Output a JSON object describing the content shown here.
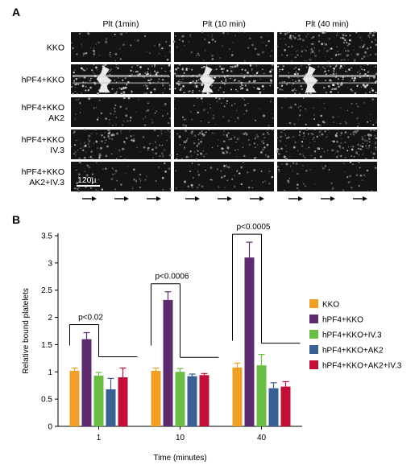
{
  "panel_a": {
    "letter": "A",
    "columns": [
      "Plt (1min)",
      "Plt (10 min)",
      "Plt (40 min)"
    ],
    "rows": [
      {
        "lines": [
          "KKO"
        ],
        "intensity": "low",
        "aggregate": false
      },
      {
        "lines": [
          "hPF4+KKO"
        ],
        "intensity": "high",
        "aggregate": true
      },
      {
        "lines": [
          "hPF4+KKO",
          "AK2"
        ],
        "intensity": "low",
        "aggregate": false
      },
      {
        "lines": [
          "hPF4+KKO",
          "IV.3"
        ],
        "intensity": "medium",
        "aggregate": false
      },
      {
        "lines": [
          "hPF4+KKO",
          "AK2+IV.3"
        ],
        "intensity": "low",
        "aggregate": false
      }
    ],
    "scale_bar_label": "120µ",
    "flow_arrow": "→"
  },
  "panel_b": {
    "letter": "B",
    "chart_data": {
      "type": "bar",
      "ylabel": "Relative bound platelets",
      "xlabel": "Time (minutes)",
      "categories": [
        "1",
        "10",
        "40"
      ],
      "ylim": [
        0,
        3.5
      ],
      "yticks": [
        "0",
        "0.5",
        "1",
        "1.5",
        "2",
        "2.5",
        "3",
        "3.5"
      ],
      "series": [
        {
          "name": "KKO",
          "color": "#f0a028",
          "values": [
            1.02,
            1.02,
            1.08
          ],
          "errors": [
            0.05,
            0.05,
            0.08
          ]
        },
        {
          "name": "hPF4+KKO",
          "color": "#5b2b6e",
          "values": [
            1.6,
            2.32,
            3.1
          ],
          "errors": [
            0.12,
            0.15,
            0.28
          ]
        },
        {
          "name": "hPF4+KKO+IV.3",
          "color": "#6cbd45",
          "values": [
            0.93,
            1.0,
            1.12
          ],
          "errors": [
            0.06,
            0.06,
            0.2
          ]
        },
        {
          "name": "hPF4+KKO+AK2",
          "color": "#3a5f93",
          "values": [
            0.68,
            0.92,
            0.7
          ],
          "errors": [
            0.2,
            0.04,
            0.1
          ]
        },
        {
          "name": "hPF4+KKO+AK2+IV.3",
          "color": "#c0103a",
          "values": [
            0.9,
            0.94,
            0.73
          ],
          "errors": [
            0.17,
            0.03,
            0.09
          ]
        }
      ],
      "annotations": [
        {
          "category": "1",
          "text": "p<0.02"
        },
        {
          "category": "10",
          "text": "p<0.0006"
        },
        {
          "category": "40",
          "text": "p<0.0005"
        }
      ],
      "legend_position": "right"
    }
  }
}
